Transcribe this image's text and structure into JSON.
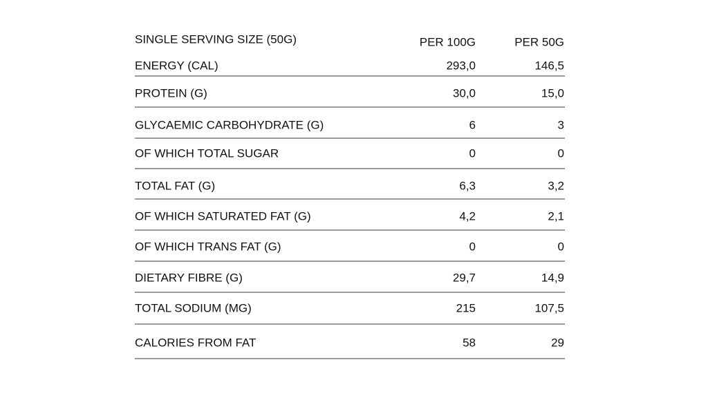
{
  "table": {
    "header": [
      "SINGLE SERVING SIZE (50G)",
      "PER 100G",
      "PER 50G"
    ],
    "rows": [
      [
        "ENERGY (CAL)",
        "293,0",
        "146,5"
      ],
      [
        "PROTEIN (G)",
        "30,0",
        "15,0"
      ],
      [
        "GLYCAEMIC CARBOHYDRATE (G)",
        "6",
        "3"
      ],
      [
        "OF WHICH TOTAL SUGAR",
        "0",
        "0"
      ],
      [
        "TOTAL FAT (G)",
        "6,3",
        "3,2"
      ],
      [
        "OF WHICH SATURATED FAT (G)",
        "4,2",
        "2,1"
      ],
      [
        "OF WHICH TRANS FAT (G)",
        "0",
        "0"
      ],
      [
        "DIETARY FIBRE (G)",
        "29,7",
        "14,9"
      ],
      [
        "TOTAL SODIUM (MG)",
        "215",
        "107,5"
      ],
      [
        "CALORIES FROM FAT",
        "58",
        "29"
      ]
    ]
  }
}
